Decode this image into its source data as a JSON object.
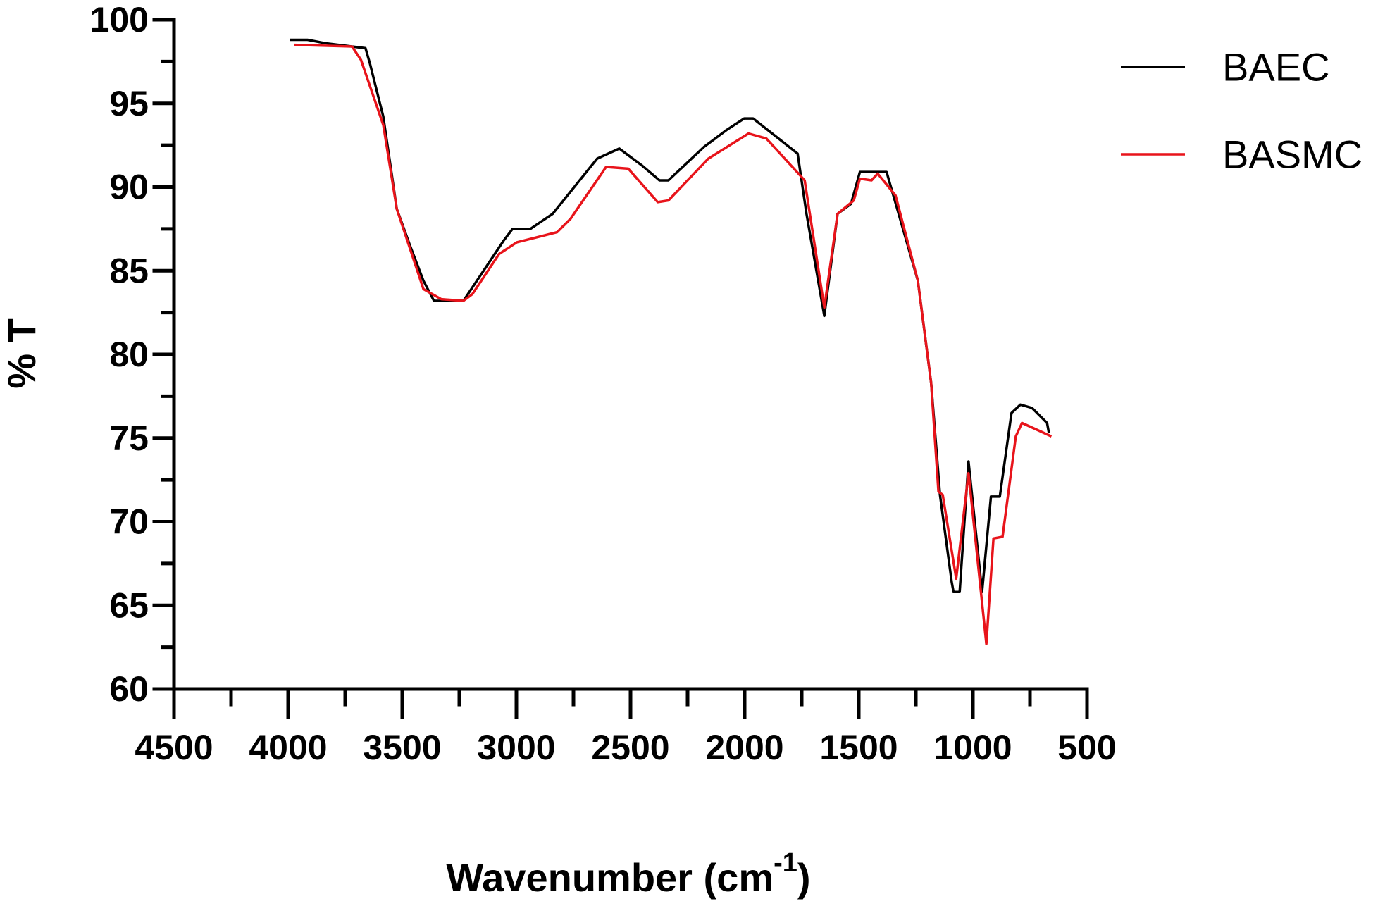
{
  "chart_data": {
    "type": "line",
    "ylabel": "% T",
    "xlabel_parts": [
      "Wavenumber (cm",
      "-1",
      ")"
    ],
    "xlim": [
      4500,
      500
    ],
    "ylim": [
      60,
      100
    ],
    "xticks": [
      4500,
      4000,
      3500,
      3000,
      2500,
      2000,
      1500,
      1000,
      500
    ],
    "yticks": [
      60,
      65,
      70,
      75,
      80,
      85,
      90,
      95,
      100
    ],
    "xminorticks": [
      4250,
      3750,
      3250,
      2750,
      2250,
      1750,
      1250,
      750
    ],
    "yminorticks": [
      62.5,
      67.5,
      72.5,
      77.5,
      82.5,
      87.5,
      92.5,
      97.5
    ],
    "legend": "top-right",
    "series": [
      {
        "name": "BAEC",
        "color": "#000000",
        "x": [
          3993,
          3915,
          3837,
          3661,
          3642,
          3583,
          3524,
          3466,
          3407,
          3361,
          3232,
          3134,
          3056,
          3017,
          2939,
          2841,
          2646,
          2549,
          2451,
          2373,
          2334,
          2178,
          2080,
          2002,
          1963,
          1768,
          1729,
          1651,
          1593,
          1534,
          1495,
          1378,
          1241,
          1183,
          1144,
          1093,
          1085,
          1058,
          1019,
          960,
          921,
          882,
          831,
          792,
          741,
          675,
          667
        ],
        "values": [
          98.8,
          98.8,
          98.6,
          98.3,
          97.4,
          94.2,
          88.7,
          86.5,
          84.4,
          83.2,
          83.2,
          85.2,
          86.8,
          87.5,
          87.5,
          88.4,
          91.7,
          92.3,
          91.3,
          90.4,
          90.4,
          92.4,
          93.4,
          94.1,
          94.1,
          92.0,
          88.4,
          82.3,
          88.4,
          89.0,
          90.9,
          90.9,
          84.4,
          78.3,
          71.6,
          66.4,
          65.8,
          65.8,
          73.6,
          65.8,
          71.5,
          71.5,
          76.5,
          77.0,
          76.8,
          75.9,
          75.3
        ]
      },
      {
        "name": "BASMC",
        "color": "#e8141b",
        "x": [
          3973,
          3720,
          3681,
          3583,
          3524,
          3407,
          3329,
          3232,
          3193,
          3076,
          2998,
          2822,
          2763,
          2607,
          2510,
          2381,
          2334,
          2159,
          1983,
          1905,
          1737,
          1651,
          1593,
          1522,
          1495,
          1444,
          1417,
          1339,
          1241,
          1183,
          1151,
          1132,
          1073,
          1019,
          941,
          910,
          870,
          812,
          785,
          656
        ],
        "values": [
          98.5,
          98.4,
          97.6,
          93.7,
          88.7,
          83.9,
          83.3,
          83.2,
          83.6,
          86.0,
          86.7,
          87.3,
          88.1,
          91.2,
          91.1,
          89.1,
          89.2,
          91.7,
          93.2,
          92.9,
          90.4,
          82.8,
          88.4,
          89.2,
          90.5,
          90.4,
          90.8,
          89.5,
          84.4,
          78.3,
          71.8,
          71.6,
          66.6,
          72.9,
          62.7,
          69.0,
          69.1,
          75.1,
          75.9,
          75.1
        ]
      }
    ]
  }
}
